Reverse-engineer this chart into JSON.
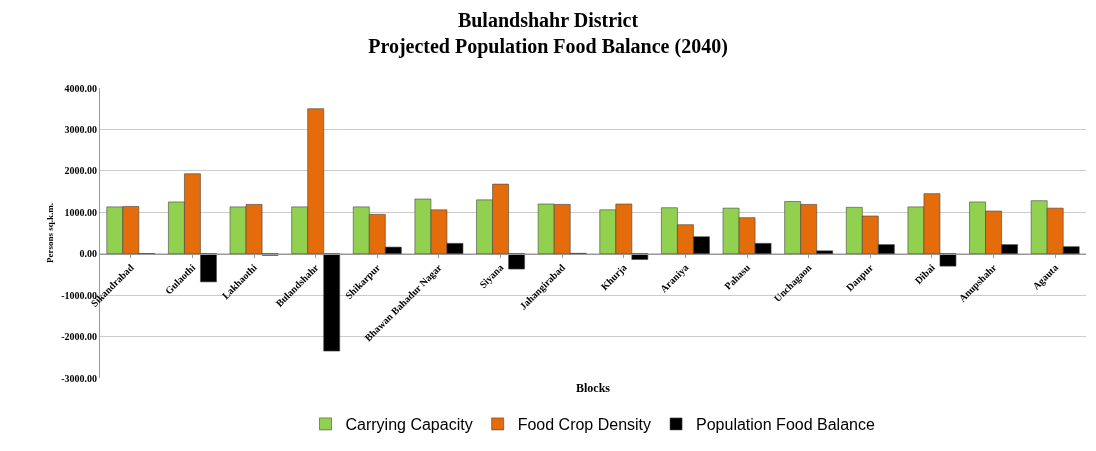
{
  "chart_data": {
    "type": "bar",
    "title": "Bulandshahr District\nProjected Population Food Balance (2040)",
    "xlabel": "Blocks",
    "ylabel": "Persons sq.k.m.",
    "categories": [
      "Sikandrabad",
      "Gulaothi",
      "Lakhaothi",
      "Bulandshahr",
      "Shikarpur",
      "Bhawan Bahadur Nagar",
      "Siyana",
      "Jahangirabad",
      "Khurja",
      "Araniya",
      "Pahasu",
      "Unchagaon",
      "Danpur",
      "Dibai",
      "Anupshahr",
      "Agauta"
    ],
    "series": [
      {
        "name": "Carrying Capacity",
        "color": "#92d050",
        "values": [
          1130,
          1250,
          1130,
          1130,
          1130,
          1320,
          1300,
          1200,
          1060,
          1110,
          1100,
          1260,
          1120,
          1130,
          1250,
          1280
        ]
      },
      {
        "name": "Food Crop Density",
        "color": "#e46c0a",
        "values": [
          1140,
          1930,
          1190,
          3500,
          950,
          1060,
          1680,
          1190,
          1200,
          700,
          870,
          1190,
          910,
          1450,
          1030,
          1100
        ]
      },
      {
        "name": "Population Food Balance",
        "color": "#000000",
        "values": [
          -10,
          -680,
          -40,
          -2350,
          160,
          250,
          -370,
          10,
          -140,
          410,
          250,
          70,
          220,
          -300,
          220,
          170
        ]
      }
    ],
    "ylim": [
      -3000,
      4000
    ],
    "yticks": [
      {
        "value": -3000,
        "label": "-3000.00"
      },
      {
        "value": -2000,
        "label": "-2000.00"
      },
      {
        "value": -1000,
        "label": "-1000.00"
      },
      {
        "value": 0,
        "label": "0.00"
      },
      {
        "value": 1000,
        "label": "1000.00"
      },
      {
        "value": 2000,
        "label": "2000.00"
      },
      {
        "value": 3000,
        "label": "3000.00"
      },
      {
        "value": 4000,
        "label": "4000.00"
      }
    ],
    "grid": "y",
    "legend": "bottom"
  }
}
